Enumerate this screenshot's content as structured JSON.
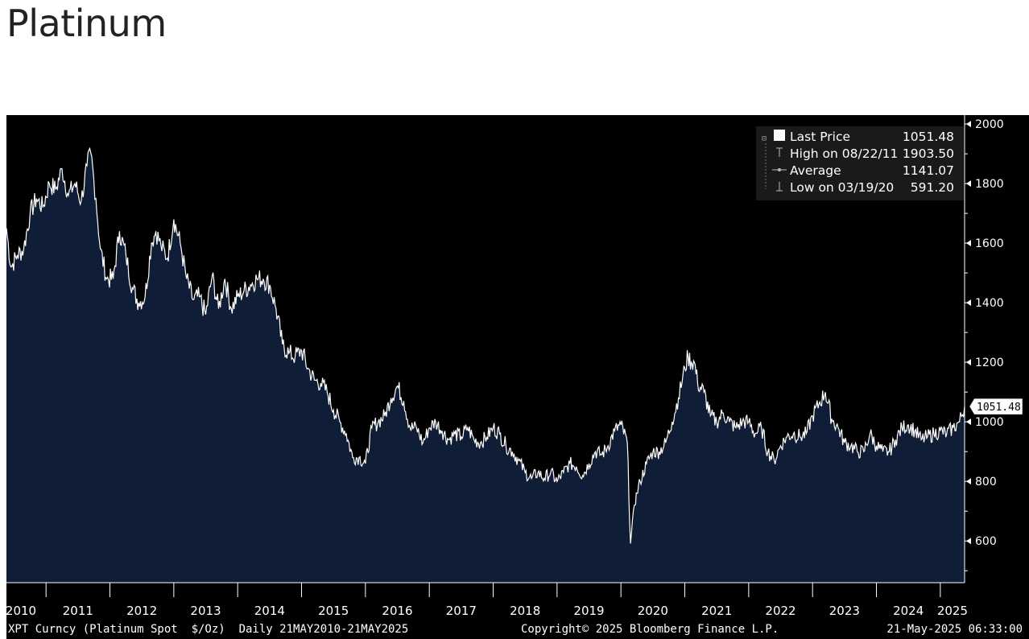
{
  "page": {
    "title": "Platinum"
  },
  "legend": {
    "last_price_label": "Last Price",
    "last_price_value": "1051.48",
    "high_label": "High on 08/22/11",
    "high_value": "1903.50",
    "average_label": "Average",
    "average_value": "1141.07",
    "low_label": "Low on 03/19/20",
    "low_value": "591.20"
  },
  "footer": {
    "left": "XPT Curncy (Platinum Spot  $/Oz)  Daily 21MAY2010-21MAY2025",
    "center": "Copyright© 2025 Bloomberg Finance L.P.",
    "right": "21-May-2025 06:33:00"
  },
  "colors": {
    "background": "#000000",
    "area_fill": "#0f1d36",
    "line": "#ffffff",
    "text": "#ffffff"
  },
  "chart_data": {
    "type": "area",
    "title": "Platinum",
    "x_label": "",
    "y_label": "",
    "x_range": [
      2010.38,
      2025.38
    ],
    "ylim": [
      460,
      2030
    ],
    "y_ticks": [
      600,
      800,
      1000,
      1200,
      1400,
      1600,
      1800,
      2000
    ],
    "x_tick_labels": [
      "2010",
      "2011",
      "2012",
      "2013",
      "2014",
      "2015",
      "2016",
      "2017",
      "2018",
      "2019",
      "2020",
      "2021",
      "2022",
      "2023",
      "2024",
      "2025"
    ],
    "grid": false,
    "legend_position": "top-right",
    "last_value_marker": "1051.48",
    "series": [
      {
        "name": "Last Price",
        "x": [
          2010.38,
          2010.45,
          2010.55,
          2010.65,
          2010.75,
          2010.85,
          2010.95,
          2011.05,
          2011.15,
          2011.25,
          2011.35,
          2011.45,
          2011.55,
          2011.64,
          2011.7,
          2011.78,
          2011.85,
          2011.95,
          2012.05,
          2012.15,
          2012.25,
          2012.35,
          2012.45,
          2012.55,
          2012.65,
          2012.72,
          2012.8,
          2012.9,
          2013.0,
          2013.1,
          2013.2,
          2013.3,
          2013.4,
          2013.5,
          2013.6,
          2013.7,
          2013.8,
          2013.9,
          2014.0,
          2014.1,
          2014.2,
          2014.3,
          2014.4,
          2014.5,
          2014.6,
          2014.7,
          2014.8,
          2014.9,
          2015.0,
          2015.1,
          2015.2,
          2015.3,
          2015.4,
          2015.5,
          2015.6,
          2015.7,
          2015.8,
          2015.9,
          2016.0,
          2016.1,
          2016.2,
          2016.3,
          2016.4,
          2016.5,
          2016.6,
          2016.7,
          2016.8,
          2016.9,
          2017.0,
          2017.1,
          2017.2,
          2017.3,
          2017.4,
          2017.5,
          2017.6,
          2017.7,
          2017.8,
          2017.9,
          2018.0,
          2018.1,
          2018.2,
          2018.3,
          2018.4,
          2018.5,
          2018.6,
          2018.7,
          2018.8,
          2018.9,
          2019.0,
          2019.1,
          2019.2,
          2019.3,
          2019.4,
          2019.5,
          2019.6,
          2019.7,
          2019.8,
          2019.9,
          2020.0,
          2020.1,
          2020.15,
          2020.21,
          2020.25,
          2020.3,
          2020.4,
          2020.5,
          2020.6,
          2020.7,
          2020.8,
          2020.9,
          2021.0,
          2021.05,
          2021.1,
          2021.15,
          2021.2,
          2021.3,
          2021.4,
          2021.5,
          2021.6,
          2021.7,
          2021.8,
          2021.9,
          2022.0,
          2022.1,
          2022.2,
          2022.3,
          2022.4,
          2022.5,
          2022.6,
          2022.7,
          2022.8,
          2022.9,
          2023.0,
          2023.1,
          2023.2,
          2023.3,
          2023.4,
          2023.5,
          2023.6,
          2023.7,
          2023.8,
          2023.9,
          2024.0,
          2024.1,
          2024.2,
          2024.3,
          2024.4,
          2024.5,
          2024.6,
          2024.7,
          2024.8,
          2024.9,
          2025.0,
          2025.1,
          2025.2,
          2025.3,
          2025.38
        ],
        "y": [
          1650,
          1520,
          1560,
          1580,
          1700,
          1750,
          1720,
          1800,
          1780,
          1850,
          1760,
          1800,
          1740,
          1860,
          1903.5,
          1750,
          1580,
          1480,
          1480,
          1640,
          1560,
          1450,
          1400,
          1420,
          1600,
          1640,
          1590,
          1550,
          1680,
          1600,
          1480,
          1410,
          1420,
          1360,
          1490,
          1380,
          1480,
          1380,
          1420,
          1440,
          1460,
          1480,
          1480,
          1460,
          1380,
          1260,
          1230,
          1220,
          1240,
          1180,
          1140,
          1130,
          1100,
          1040,
          1000,
          960,
          880,
          880,
          860,
          980,
          1000,
          1020,
          1080,
          1120,
          1070,
          980,
          980,
          930,
          980,
          1000,
          970,
          940,
          960,
          950,
          980,
          940,
          930,
          950,
          980,
          960,
          920,
          900,
          870,
          830,
          810,
          830,
          810,
          830,
          800,
          830,
          860,
          850,
          820,
          860,
          900,
          890,
          920,
          970,
          990,
          930,
          591.2,
          720,
          760,
          800,
          860,
          900,
          900,
          930,
          1000,
          1080,
          1180,
          1220,
          1200,
          1200,
          1130,
          1100,
          1020,
          1000,
          1030,
          1000,
          980,
          1000,
          1000,
          960,
          980,
          900,
          870,
          920,
          950,
          960,
          950,
          960,
          1020,
          1060,
          1100,
          1010,
          980,
          930,
          920,
          900,
          900,
          960,
          920,
          900,
          900,
          940,
          980,
          990,
          970,
          940,
          950,
          960,
          970,
          960,
          980,
          1000,
          1051.48
        ]
      }
    ]
  }
}
